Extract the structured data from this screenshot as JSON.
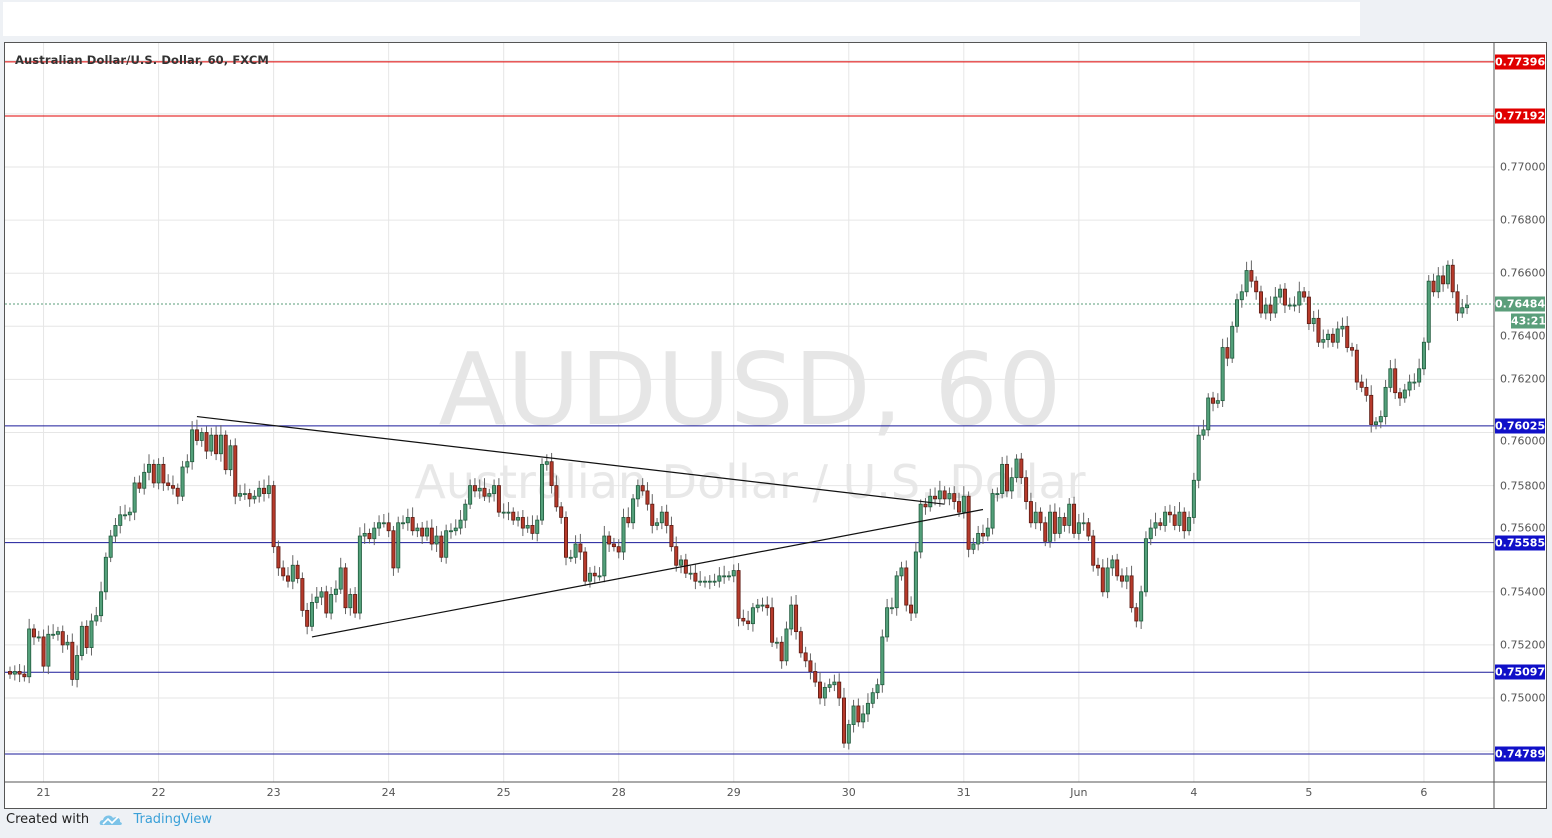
{
  "chart_title": "Australian Dollar/U.S. Dollar, 60, FXCM",
  "watermark": {
    "symbol": "AUDUSD, 60",
    "description": "Australian Dollar / U.S. Dollar"
  },
  "footer": {
    "created_with": "Created with",
    "brand": "TradingView"
  },
  "countdown": "43:21",
  "colors": {
    "up": "#53a07a",
    "down": "#b63a2b",
    "resistance": "#e00000",
    "support": "#1010c8",
    "last_price": "#5a9e7a",
    "trendline": "#111111"
  },
  "chart_data": {
    "type": "candlestick",
    "interval": "60",
    "symbol": "AUDUSD",
    "ylim": [
      0.7466,
      0.776
    ],
    "grid": true,
    "y_ticks": [
      "0.77000",
      "0.76800",
      "0.76600",
      "0.76400",
      "0.76200",
      "0.76000",
      "0.75800",
      "0.75600",
      "0.75400",
      "0.75200",
      "0.75000"
    ],
    "x_ticks": [
      "21",
      "22",
      "23",
      "24",
      "25",
      "28",
      "29",
      "30",
      "31",
      "Jun",
      "4",
      "5",
      "6"
    ],
    "bars_per_day": 24,
    "closes": [
      0.7509,
      0.751,
      0.7509,
      0.7508,
      0.7526,
      0.7523,
      0.7523,
      0.7512,
      0.7524,
      0.7524,
      0.7525,
      0.752,
      0.7521,
      0.7507,
      0.7516,
      0.7527,
      0.7519,
      0.7529,
      0.7531,
      0.754,
      0.7553,
      0.7561,
      0.7565,
      0.7569,
      0.7569,
      0.757,
      0.7581,
      0.7579,
      0.7585,
      0.7588,
      0.7581,
      0.7588,
      0.7581,
      0.758,
      0.7579,
      0.7576,
      0.7587,
      0.7589,
      0.7601,
      0.7597,
      0.76,
      0.7593,
      0.7599,
      0.7592,
      0.7599,
      0.7586,
      0.7595,
      0.7576,
      0.7577,
      0.7577,
      0.7575,
      0.7576,
      0.7579,
      0.7577,
      0.758,
      0.7557,
      0.7549,
      0.7546,
      0.7544,
      0.755,
      0.7545,
      0.7533,
      0.7527,
      0.7536,
      0.7538,
      0.754,
      0.7532,
      0.7539,
      0.7541,
      0.7549,
      0.7534,
      0.7539,
      0.7532,
      0.7561,
      0.7562,
      0.756,
      0.7564,
      0.7566,
      0.7566,
      0.7563,
      0.7549,
      0.7566,
      0.7566,
      0.7568,
      0.7563,
      0.7564,
      0.7561,
      0.7564,
      0.7558,
      0.7561,
      0.7553,
      0.7563,
      0.7563,
      0.7564,
      0.7567,
      0.7573,
      0.758,
      0.7578,
      0.7579,
      0.7576,
      0.7577,
      0.758,
      0.757,
      0.757,
      0.757,
      0.7567,
      0.7568,
      0.7564,
      0.7565,
      0.7562,
      0.7567,
      0.7588,
      0.7589,
      0.758,
      0.7572,
      0.7568,
      0.7553,
      0.7553,
      0.7558,
      0.7555,
      0.7544,
      0.7547,
      0.7546,
      0.7546,
      0.7561,
      0.7558,
      0.7557,
      0.7555,
      0.7568,
      0.7566,
      0.7575,
      0.758,
      0.7578,
      0.7573,
      0.7565,
      0.7566,
      0.757,
      0.7565,
      0.7557,
      0.755,
      0.7552,
      0.7547,
      0.7547,
      0.7544,
      0.7544,
      0.7544,
      0.7544,
      0.7544,
      0.7546,
      0.7546,
      0.7546,
      0.7548,
      0.753,
      0.7529,
      0.7528,
      0.7534,
      0.7535,
      0.7535,
      0.7534,
      0.7521,
      0.7521,
      0.7514,
      0.7526,
      0.7535,
      0.7525,
      0.7517,
      0.7514,
      0.751,
      0.7506,
      0.75,
      0.7504,
      0.7505,
      0.7506,
      0.75,
      0.7483,
      0.749,
      0.7497,
      0.7491,
      0.7494,
      0.7498,
      0.7502,
      0.7505,
      0.7523,
      0.7534,
      0.7534,
      0.7546,
      0.7549,
      0.7535,
      0.7532,
      0.7555,
      0.7573,
      0.7572,
      0.7576,
      0.7575,
      0.7578,
      0.7575,
      0.7577,
      0.7574,
      0.757,
      0.7576,
      0.7556,
      0.7558,
      0.7562,
      0.7561,
      0.7564,
      0.7577,
      0.7577,
      0.7588,
      0.7578,
      0.7583,
      0.759,
      0.7583,
      0.7574,
      0.7566,
      0.757,
      0.7566,
      0.7559,
      0.757,
      0.7562,
      0.7568,
      0.7565,
      0.7573,
      0.7562,
      0.7566,
      0.7566,
      0.7561,
      0.755,
      0.7549,
      0.754,
      0.7549,
      0.7552,
      0.7546,
      0.7544,
      0.7546,
      0.7534,
      0.7529,
      0.754,
      0.756,
      0.7564,
      0.7566,
      0.7565,
      0.757,
      0.7569,
      0.7565,
      0.757,
      0.7563,
      0.7568,
      0.7582,
      0.7599,
      0.7601,
      0.7613,
      0.7611,
      0.7612,
      0.7632,
      0.7628,
      0.764,
      0.765,
      0.7653,
      0.7661,
      0.7657,
      0.7653,
      0.7645,
      0.7648,
      0.7645,
      0.7651,
      0.7654,
      0.7648,
      0.7648,
      0.7648,
      0.7653,
      0.7651,
      0.7641,
      0.7643,
      0.7634,
      0.7635,
      0.7637,
      0.7634,
      0.7639,
      0.764,
      0.7632,
      0.7631,
      0.7619,
      0.7617,
      0.7614,
      0.7603,
      0.7604,
      0.7606,
      0.7617,
      0.7624,
      0.7615,
      0.7613,
      0.7616,
      0.7619,
      0.7619,
      0.7624,
      0.7634,
      0.7657,
      0.7653,
      0.7659,
      0.7656,
      0.7663,
      0.7653,
      0.7645,
      0.7647,
      0.7648
    ],
    "horizontal_levels": [
      {
        "price": "0.77396",
        "kind": "resistance"
      },
      {
        "price": "0.77192",
        "kind": "resistance"
      },
      {
        "price": "0.76025",
        "kind": "support"
      },
      {
        "price": "0.75585",
        "kind": "support"
      },
      {
        "price": "0.75097",
        "kind": "support"
      },
      {
        "price": "0.74789",
        "kind": "support"
      }
    ],
    "last_price": "0.76484",
    "trendlines": [
      {
        "from": {
          "bar": 39,
          "price": 0.7606
        },
        "to": {
          "bar": 195,
          "price": 0.7573
        }
      },
      {
        "from": {
          "bar": 63,
          "price": 0.7523
        },
        "to": {
          "bar": 203,
          "price": 0.7571
        }
      }
    ]
  }
}
